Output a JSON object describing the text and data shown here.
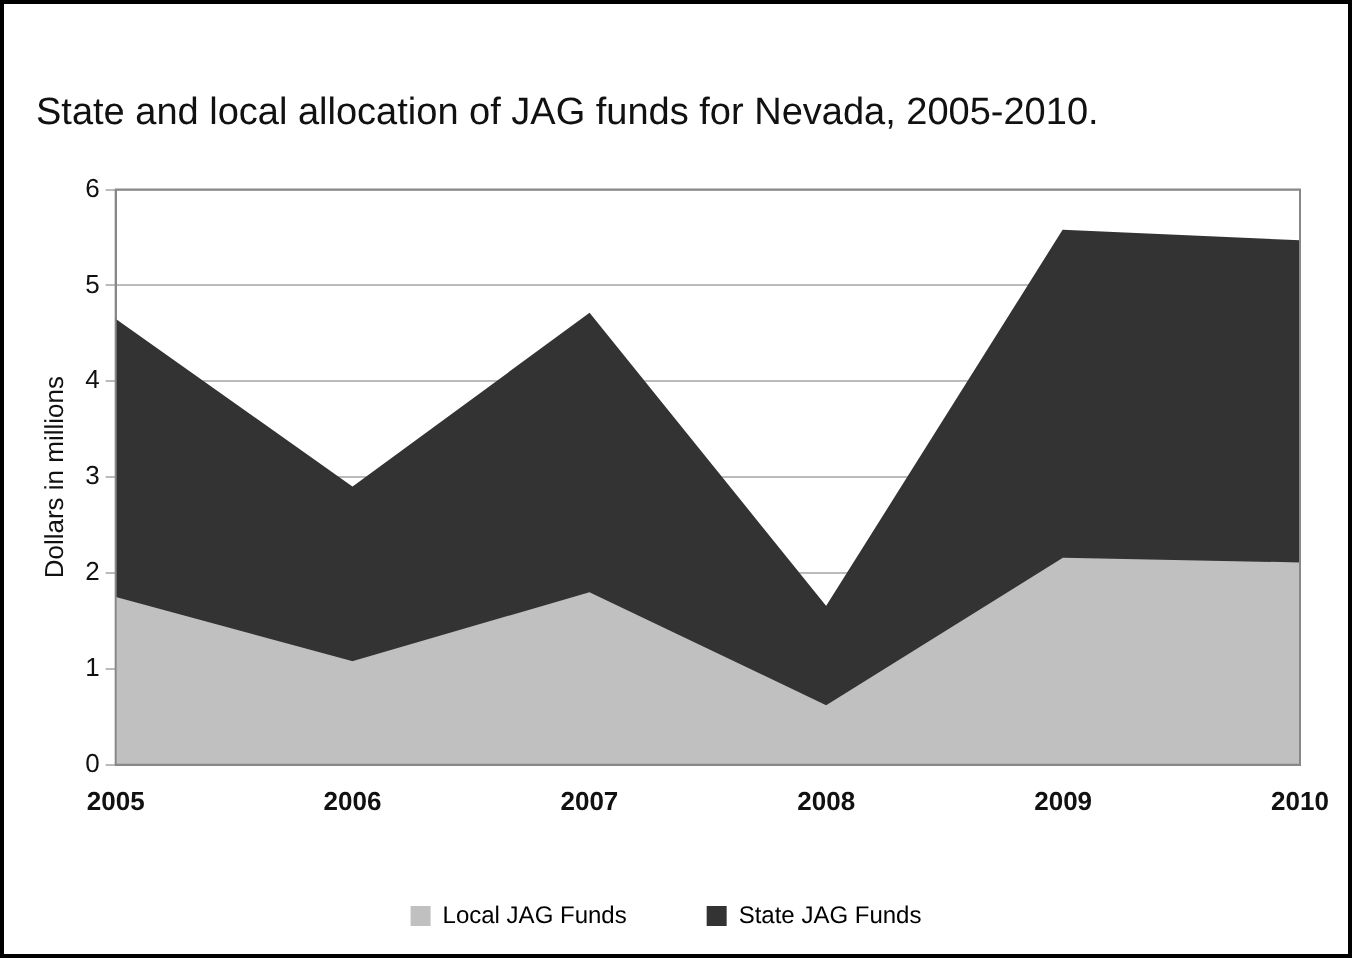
{
  "chart_data": {
    "type": "area",
    "title": "State and local allocation of JAG funds for Nevada, 2005-2010.",
    "ylabel": "Dollars in millions",
    "categories": [
      "2005",
      "2006",
      "2007",
      "2008",
      "2009",
      "2010"
    ],
    "stacked": true,
    "series": [
      {
        "name": "Local JAG Funds",
        "color": "#c0c0c0",
        "values": [
          1.74,
          1.07,
          1.79,
          0.61,
          2.15,
          2.1
        ]
      },
      {
        "name": "State JAG Funds",
        "color": "#333333",
        "values": [
          2.9,
          1.82,
          2.91,
          1.03,
          3.42,
          3.36
        ]
      }
    ],
    "ylim": [
      0,
      6
    ],
    "yticks": [
      0,
      1,
      2,
      3,
      4,
      5,
      6
    ],
    "grid": "y",
    "legend": "bottom"
  }
}
